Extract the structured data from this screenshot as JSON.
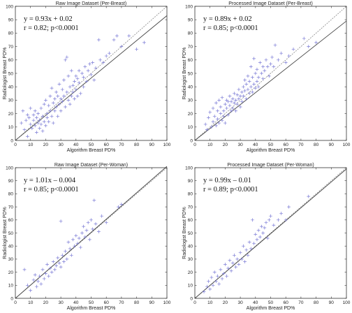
{
  "colors": {
    "points": "#7b7bd6",
    "fit_line": "#444444",
    "identity_line": "#888888",
    "axes": "#333333"
  },
  "chart_data": [
    {
      "type": "scatter",
      "title": "Raw Image Dataset (Per-Breast)",
      "xlabel": "Algorithm Breast PD%",
      "ylabel": "Radiologist Breast PD%",
      "xlim": [
        0,
        100
      ],
      "ylim": [
        0,
        100
      ],
      "xticks": [
        "0",
        "10",
        "20",
        "30",
        "40",
        "50",
        "60",
        "70",
        "80",
        "90",
        "100"
      ],
      "yticks": [
        "0",
        "10",
        "20",
        "30",
        "40",
        "50",
        "60",
        "70",
        "80",
        "90",
        "100"
      ],
      "annotation_line1": "y = 0.93x + 0.02",
      "annotation_line2": "r = 0.82; p<0.0001",
      "fit": {
        "slope": 0.93,
        "intercept": 0.02
      },
      "points": [
        [
          4,
          13
        ],
        [
          5,
          22
        ],
        [
          6,
          8
        ],
        [
          7,
          15
        ],
        [
          8,
          19
        ],
        [
          8,
          3
        ],
        [
          9,
          17
        ],
        [
          10,
          12
        ],
        [
          10,
          24
        ],
        [
          11,
          9
        ],
        [
          12,
          15
        ],
        [
          12,
          19
        ],
        [
          13,
          22
        ],
        [
          13,
          11
        ],
        [
          14,
          17
        ],
        [
          14,
          6
        ],
        [
          15,
          13
        ],
        [
          15,
          20
        ],
        [
          16,
          9
        ],
        [
          16,
          15
        ],
        [
          17,
          12
        ],
        [
          17,
          24
        ],
        [
          18,
          18
        ],
        [
          18,
          7
        ],
        [
          19,
          14
        ],
        [
          19,
          27
        ],
        [
          20,
          11
        ],
        [
          20,
          30
        ],
        [
          21,
          17
        ],
        [
          21,
          20
        ],
        [
          22,
          14
        ],
        [
          22,
          26
        ],
        [
          23,
          22
        ],
        [
          23,
          33
        ],
        [
          24,
          18
        ],
        [
          24,
          39
        ],
        [
          25,
          28
        ],
        [
          25,
          13
        ],
        [
          26,
          31
        ],
        [
          26,
          22
        ],
        [
          27,
          25
        ],
        [
          27,
          36
        ],
        [
          28,
          33
        ],
        [
          28,
          18
        ],
        [
          29,
          27
        ],
        [
          29,
          42
        ],
        [
          30,
          31
        ],
        [
          30,
          22
        ],
        [
          31,
          29
        ],
        [
          31,
          38
        ],
        [
          32,
          45
        ],
        [
          32,
          33
        ],
        [
          33,
          60
        ],
        [
          33,
          25
        ],
        [
          34,
          36
        ],
        [
          34,
          62
        ],
        [
          35,
          30
        ],
        [
          35,
          48
        ],
        [
          36,
          40
        ],
        [
          36,
          27
        ],
        [
          37,
          33
        ],
        [
          37,
          52
        ],
        [
          38,
          41
        ],
        [
          38,
          36
        ],
        [
          39,
          44
        ],
        [
          39,
          31
        ],
        [
          40,
          38
        ],
        [
          40,
          48
        ],
        [
          41,
          33
        ],
        [
          41,
          46
        ],
        [
          42,
          43
        ],
        [
          42,
          52
        ],
        [
          43,
          35
        ],
        [
          44,
          50
        ],
        [
          45,
          47
        ],
        [
          45,
          40
        ],
        [
          46,
          55
        ],
        [
          47,
          44
        ],
        [
          48,
          52
        ],
        [
          49,
          57
        ],
        [
          50,
          49
        ],
        [
          51,
          58
        ],
        [
          52,
          45
        ],
        [
          53,
          54
        ],
        [
          55,
          75
        ],
        [
          56,
          60
        ],
        [
          58,
          58
        ],
        [
          60,
          63
        ],
        [
          62,
          65
        ],
        [
          65,
          75
        ],
        [
          67,
          78
        ],
        [
          70,
          70
        ],
        [
          75,
          78
        ],
        [
          80,
          68
        ],
        [
          85,
          73
        ]
      ]
    },
    {
      "type": "scatter",
      "title": "Processed Image Dataset (Per-Breast)",
      "xlabel": "Algorithm Breast PD%",
      "ylabel": "Radiologist Breast PD%",
      "xlim": [
        0,
        100
      ],
      "ylim": [
        0,
        100
      ],
      "xticks": [
        "0",
        "10",
        "20",
        "30",
        "40",
        "50",
        "60",
        "70",
        "80",
        "90",
        "100"
      ],
      "yticks": [
        "0",
        "10",
        "20",
        "30",
        "40",
        "50",
        "60",
        "70",
        "80",
        "90",
        "100"
      ],
      "annotation_line1": "y = 0.89x + 0.02",
      "annotation_line2": "r = 0.85; p<0.0001",
      "fit": {
        "slope": 0.89,
        "intercept": 0.02
      },
      "points": [
        [
          7,
          12
        ],
        [
          8,
          8
        ],
        [
          9,
          17
        ],
        [
          10,
          21
        ],
        [
          11,
          10
        ],
        [
          12,
          14
        ],
        [
          12,
          24
        ],
        [
          13,
          18
        ],
        [
          14,
          11
        ],
        [
          14,
          28
        ],
        [
          15,
          16
        ],
        [
          15,
          22
        ],
        [
          16,
          13
        ],
        [
          16,
          30
        ],
        [
          17,
          20
        ],
        [
          17,
          25
        ],
        [
          18,
          15
        ],
        [
          18,
          32
        ],
        [
          19,
          22
        ],
        [
          19,
          18
        ],
        [
          20,
          27
        ],
        [
          20,
          13
        ],
        [
          21,
          24
        ],
        [
          21,
          30
        ],
        [
          22,
          19
        ],
        [
          22,
          29
        ],
        [
          23,
          26
        ],
        [
          23,
          33
        ],
        [
          24,
          22
        ],
        [
          24,
          29
        ],
        [
          25,
          31
        ],
        [
          25,
          24
        ],
        [
          26,
          28
        ],
        [
          26,
          35
        ],
        [
          27,
          22
        ],
        [
          27,
          30
        ],
        [
          28,
          34
        ],
        [
          28,
          27
        ],
        [
          29,
          31
        ],
        [
          29,
          38
        ],
        [
          30,
          25
        ],
        [
          30,
          33
        ],
        [
          31,
          36
        ],
        [
          31,
          29
        ],
        [
          32,
          40
        ],
        [
          32,
          33
        ],
        [
          33,
          37
        ],
        [
          33,
          45
        ],
        [
          34,
          31
        ],
        [
          34,
          42
        ],
        [
          35,
          38
        ],
        [
          35,
          48
        ],
        [
          36,
          35
        ],
        [
          36,
          44
        ],
        [
          37,
          40
        ],
        [
          37,
          55
        ],
        [
          38,
          36
        ],
        [
          38,
          47
        ],
        [
          39,
          42
        ],
        [
          39,
          61
        ],
        [
          40,
          39
        ],
        [
          40,
          50
        ],
        [
          41,
          44
        ],
        [
          41,
          53
        ],
        [
          42,
          47
        ],
        [
          42,
          40
        ],
        [
          43,
          58
        ],
        [
          44,
          50
        ],
        [
          45,
          46
        ],
        [
          45,
          55
        ],
        [
          46,
          52
        ],
        [
          47,
          60
        ],
        [
          48,
          55
        ],
        [
          49,
          48
        ],
        [
          50,
          57
        ],
        [
          51,
          62
        ],
        [
          52,
          55
        ],
        [
          53,
          71
        ],
        [
          55,
          60
        ],
        [
          57,
          65
        ],
        [
          60,
          58
        ],
        [
          62,
          63
        ],
        [
          65,
          68
        ],
        [
          72,
          76
        ],
        [
          75,
          70
        ],
        [
          80,
          73
        ]
      ]
    },
    {
      "type": "scatter",
      "title": "Raw Image Dataset (Per-Woman)",
      "xlabel": "Algorithm Breast PD%",
      "ylabel": "Radiologist Breast PD%",
      "xlim": [
        0,
        100
      ],
      "ylim": [
        0,
        100
      ],
      "xticks": [
        "0",
        "10",
        "20",
        "30",
        "40",
        "50",
        "60",
        "70",
        "80",
        "90",
        "100"
      ],
      "yticks": [
        "0",
        "10",
        "20",
        "30",
        "40",
        "50",
        "60",
        "70",
        "80",
        "90",
        "100"
      ],
      "annotation_line1": "y = 1.01x – 0.004",
      "annotation_line2": "r = 0.85; p<0.0001",
      "fit": {
        "slope": 1.01,
        "intercept": -0.004
      },
      "points": [
        [
          6,
          22
        ],
        [
          8,
          10
        ],
        [
          10,
          6
        ],
        [
          12,
          14
        ],
        [
          13,
          18
        ],
        [
          14,
          9
        ],
        [
          15,
          13
        ],
        [
          16,
          17
        ],
        [
          17,
          11
        ],
        [
          18,
          22
        ],
        [
          19,
          15
        ],
        [
          20,
          19
        ],
        [
          21,
          26
        ],
        [
          22,
          17
        ],
        [
          23,
          23
        ],
        [
          24,
          20
        ],
        [
          25,
          28
        ],
        [
          26,
          22
        ],
        [
          27,
          25
        ],
        [
          28,
          31
        ],
        [
          29,
          27
        ],
        [
          30,
          24
        ],
        [
          30,
          59
        ],
        [
          31,
          33
        ],
        [
          32,
          28
        ],
        [
          33,
          36
        ],
        [
          34,
          30
        ],
        [
          35,
          43
        ],
        [
          36,
          38
        ],
        [
          37,
          33
        ],
        [
          38,
          45
        ],
        [
          39,
          40
        ],
        [
          40,
          48
        ],
        [
          41,
          42
        ],
        [
          42,
          46
        ],
        [
          43,
          39
        ],
        [
          44,
          50
        ],
        [
          45,
          55
        ],
        [
          46,
          47
        ],
        [
          47,
          52
        ],
        [
          48,
          58
        ],
        [
          49,
          45
        ],
        [
          50,
          60
        ],
        [
          51,
          53
        ],
        [
          52,
          75
        ],
        [
          53,
          57
        ],
        [
          55,
          51
        ],
        [
          57,
          63
        ],
        [
          60,
          58
        ],
        [
          68,
          70
        ],
        [
          70,
          72
        ]
      ]
    },
    {
      "type": "scatter",
      "title": "Processed Image Dataset (Per-Woman)",
      "xlabel": "Algorithm Breast PD%",
      "ylabel": "Radiologist Breast PD%",
      "xlim": [
        0,
        100
      ],
      "ylim": [
        0,
        100
      ],
      "xticks": [
        "0",
        "10",
        "20",
        "30",
        "40",
        "50",
        "60",
        "70",
        "80",
        "90",
        "100"
      ],
      "yticks": [
        "0",
        "10",
        "20",
        "30",
        "40",
        "50",
        "60",
        "70",
        "80",
        "90",
        "100"
      ],
      "annotation_line1": "y = 0.99x – 0.01",
      "annotation_line2": "r = 0.89; p<0.0001",
      "fit": {
        "slope": 0.99,
        "intercept": -0.01
      },
      "points": [
        [
          6,
          5
        ],
        [
          8,
          9
        ],
        [
          9,
          13
        ],
        [
          10,
          7
        ],
        [
          11,
          16
        ],
        [
          12,
          10
        ],
        [
          13,
          20
        ],
        [
          14,
          13
        ],
        [
          15,
          17
        ],
        [
          16,
          11
        ],
        [
          17,
          22
        ],
        [
          18,
          15
        ],
        [
          19,
          19
        ],
        [
          20,
          26
        ],
        [
          21,
          17
        ],
        [
          22,
          23
        ],
        [
          23,
          29
        ],
        [
          24,
          21
        ],
        [
          25,
          27
        ],
        [
          26,
          33
        ],
        [
          27,
          24
        ],
        [
          28,
          30
        ],
        [
          29,
          26
        ],
        [
          30,
          35
        ],
        [
          31,
          30
        ],
        [
          32,
          40
        ],
        [
          33,
          28
        ],
        [
          34,
          37
        ],
        [
          35,
          33
        ],
        [
          36,
          43
        ],
        [
          37,
          38
        ],
        [
          38,
          60
        ],
        [
          39,
          42
        ],
        [
          40,
          49
        ],
        [
          41,
          45
        ],
        [
          42,
          52
        ],
        [
          43,
          47
        ],
        [
          44,
          55
        ],
        [
          45,
          50
        ],
        [
          46,
          54
        ],
        [
          47,
          58
        ],
        [
          48,
          46
        ],
        [
          49,
          60
        ],
        [
          50,
          63
        ],
        [
          52,
          56
        ],
        [
          55,
          60
        ],
        [
          57,
          65
        ],
        [
          60,
          60
        ],
        [
          62,
          70
        ],
        [
          75,
          78
        ]
      ]
    }
  ]
}
